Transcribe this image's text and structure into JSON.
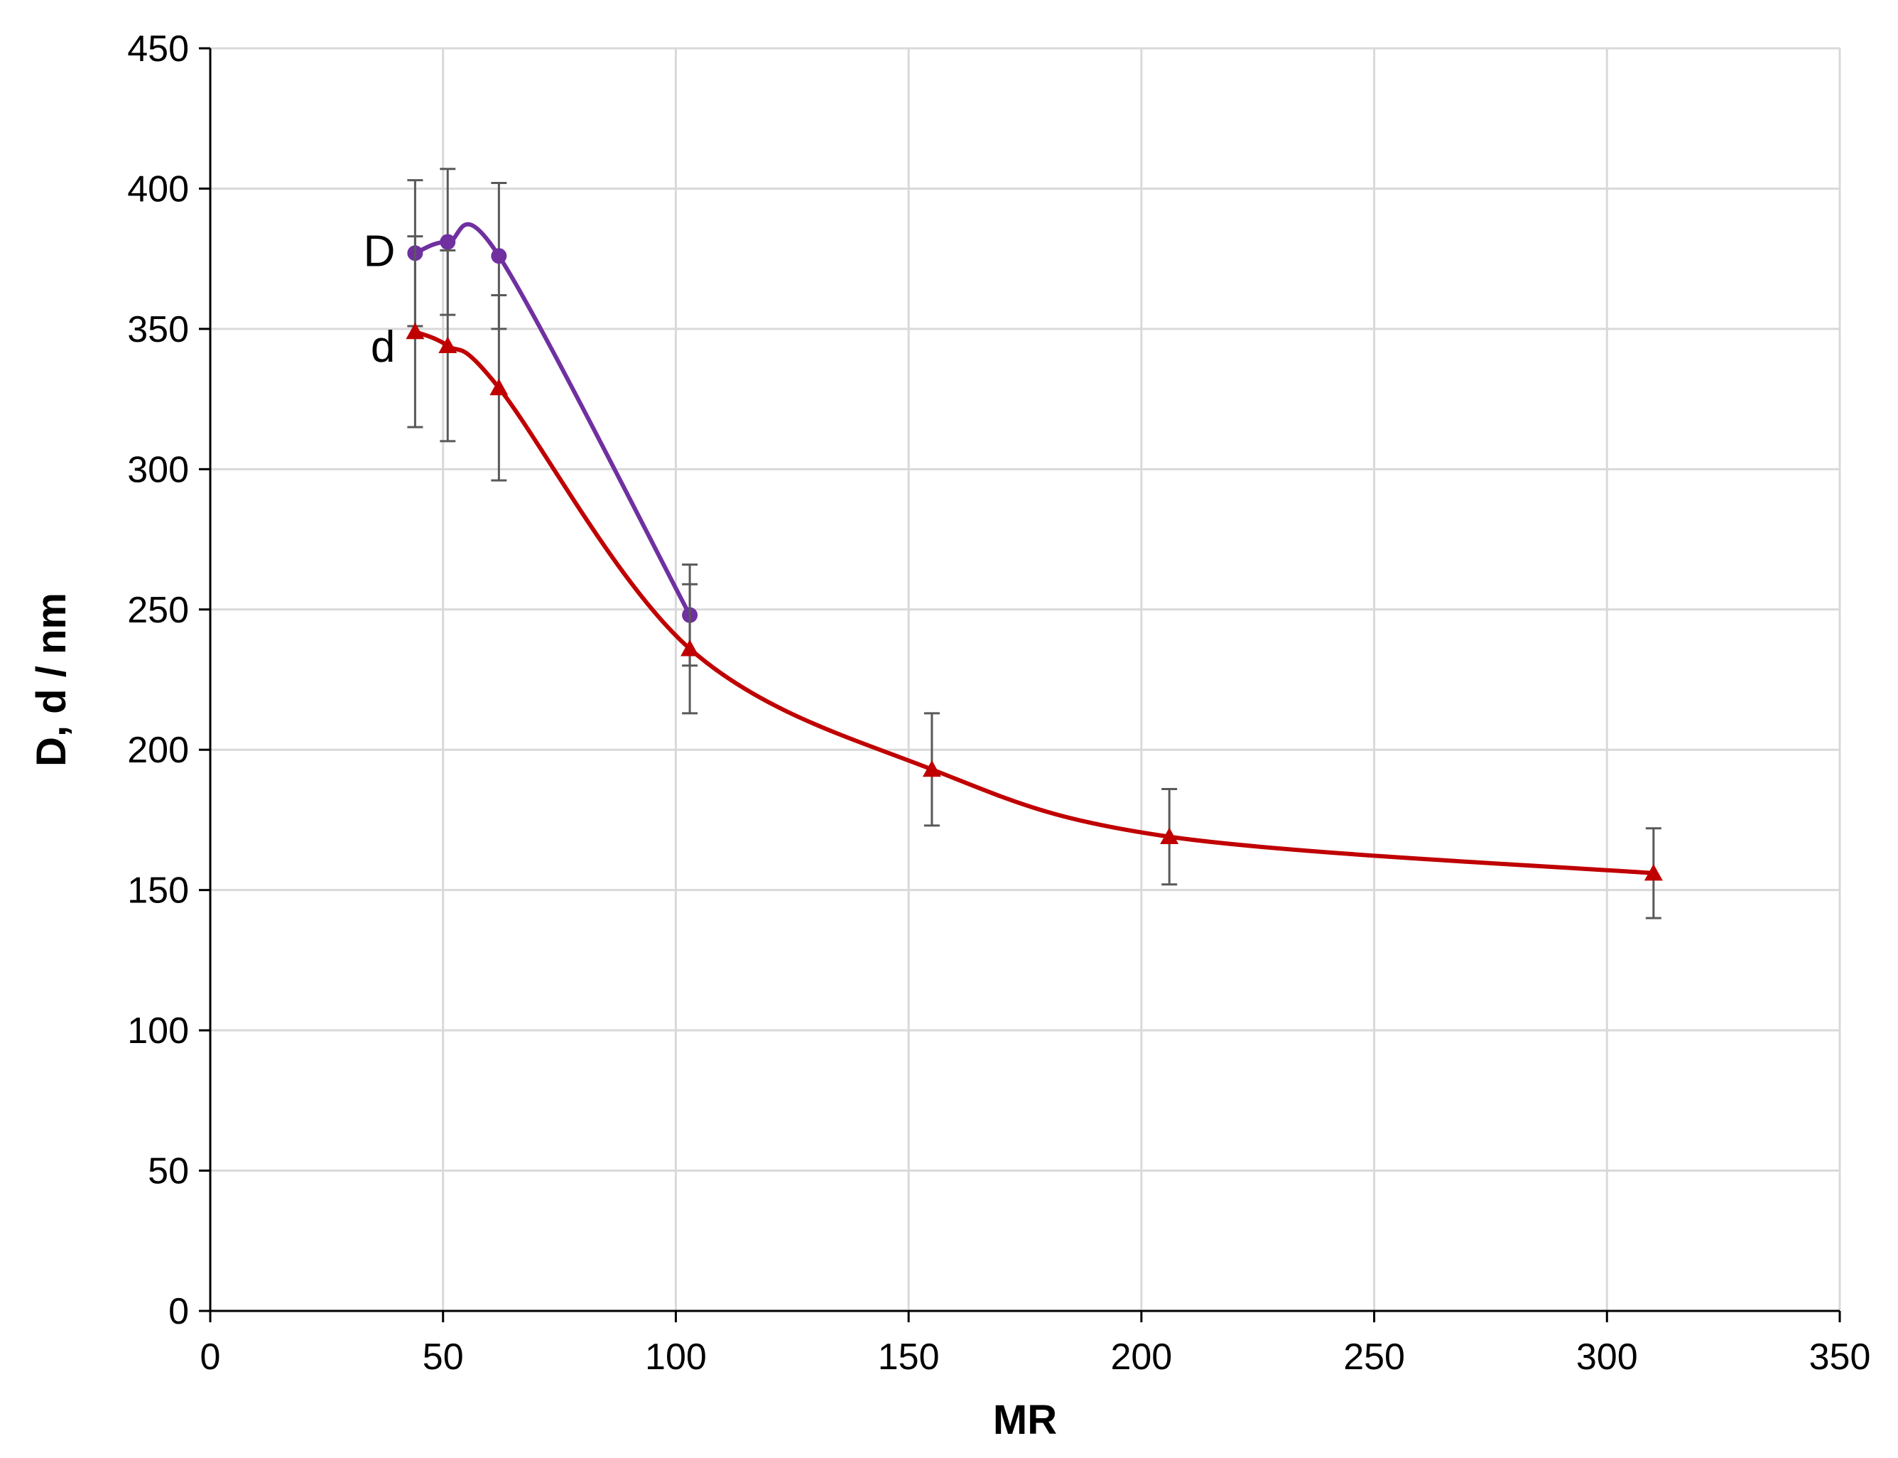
{
  "chart_data": {
    "type": "line",
    "title": "",
    "xlabel": "MR",
    "ylabel": "D, d / nm",
    "xlim": [
      0,
      350
    ],
    "ylim": [
      0,
      450
    ],
    "xticks": [
      0,
      50,
      100,
      150,
      200,
      250,
      300,
      350
    ],
    "yticks": [
      0,
      50,
      100,
      150,
      200,
      250,
      300,
      350,
      400,
      450
    ],
    "grid": true,
    "legend": "none",
    "series": [
      {
        "name": "D",
        "color": "#7030a0",
        "marker": "circle",
        "smooth": true,
        "x": [
          44,
          51,
          62,
          103
        ],
        "y": [
          377,
          381,
          376,
          248
        ],
        "error": [
          26,
          26,
          26,
          18
        ]
      },
      {
        "name": "d",
        "color": "#c00000",
        "marker": "triangle",
        "smooth": true,
        "x": [
          44,
          51,
          62,
          103,
          155,
          206,
          310
        ],
        "y": [
          349,
          344,
          329,
          236,
          193,
          169,
          156
        ],
        "error": [
          34,
          34,
          33,
          23,
          20,
          17,
          16
        ]
      }
    ]
  }
}
